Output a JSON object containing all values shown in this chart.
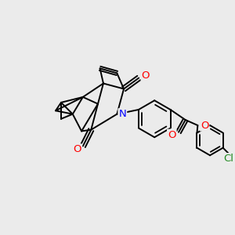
{
  "background_color": "#ebebeb",
  "bond_width": 1.4,
  "figsize": [
    3.0,
    3.0
  ],
  "dpi": 100,
  "xlim": [
    -1.6,
    1.8
  ],
  "ylim": [
    -1.8,
    1.6
  ],
  "N_color": "#0000ff",
  "O_color": "#ff0000",
  "Cl_color": "#228B22",
  "label_fontsize": 9.5
}
